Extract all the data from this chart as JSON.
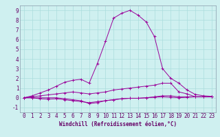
{
  "xlabel": "Windchill (Refroidissement éolien,°C)",
  "ylabel": "",
  "background_color": "#cff0f0",
  "grid_color": "#aadddd",
  "line_color": "#990099",
  "x_ticks": [
    0,
    1,
    2,
    3,
    4,
    5,
    6,
    7,
    8,
    9,
    10,
    11,
    12,
    13,
    14,
    15,
    16,
    17,
    18,
    19,
    20,
    21,
    22,
    23
  ],
  "y_ticks": [
    -1,
    0,
    1,
    2,
    3,
    4,
    5,
    6,
    7,
    8,
    9
  ],
  "ylim": [
    -1.5,
    9.5
  ],
  "xlim": [
    -0.5,
    23.5
  ],
  "series": [
    [
      0.0,
      0.0,
      -0.1,
      -0.15,
      -0.1,
      -0.2,
      -0.3,
      -0.4,
      -0.5,
      -0.4,
      -0.3,
      -0.2,
      -0.1,
      -0.05,
      -0.05,
      0.0,
      0.05,
      0.1,
      0.05,
      0.0,
      0.05,
      0.1,
      0.1,
      0.1
    ],
    [
      0.0,
      0.0,
      0.0,
      0.0,
      0.0,
      -0.1,
      -0.2,
      -0.3,
      -0.6,
      -0.5,
      -0.3,
      -0.2,
      -0.1,
      -0.05,
      -0.05,
      0.0,
      0.1,
      0.2,
      0.2,
      0.1,
      0.1,
      0.1,
      0.1,
      0.1
    ],
    [
      0.0,
      0.1,
      0.2,
      0.3,
      0.4,
      0.5,
      0.6,
      0.5,
      0.4,
      0.5,
      0.6,
      0.8,
      0.9,
      1.0,
      1.1,
      1.2,
      1.3,
      1.5,
      1.5,
      0.6,
      0.4,
      0.1,
      0.1,
      0.1
    ],
    [
      0.0,
      0.2,
      0.5,
      0.8,
      1.2,
      1.6,
      1.8,
      1.9,
      1.5,
      3.5,
      5.8,
      8.2,
      8.7,
      9.0,
      8.5,
      7.8,
      6.3,
      3.0,
      2.0,
      1.5,
      0.8,
      0.35,
      0.2,
      0.15
    ]
  ],
  "tick_fontsize": 5.5,
  "xlabel_fontsize": 5.5
}
